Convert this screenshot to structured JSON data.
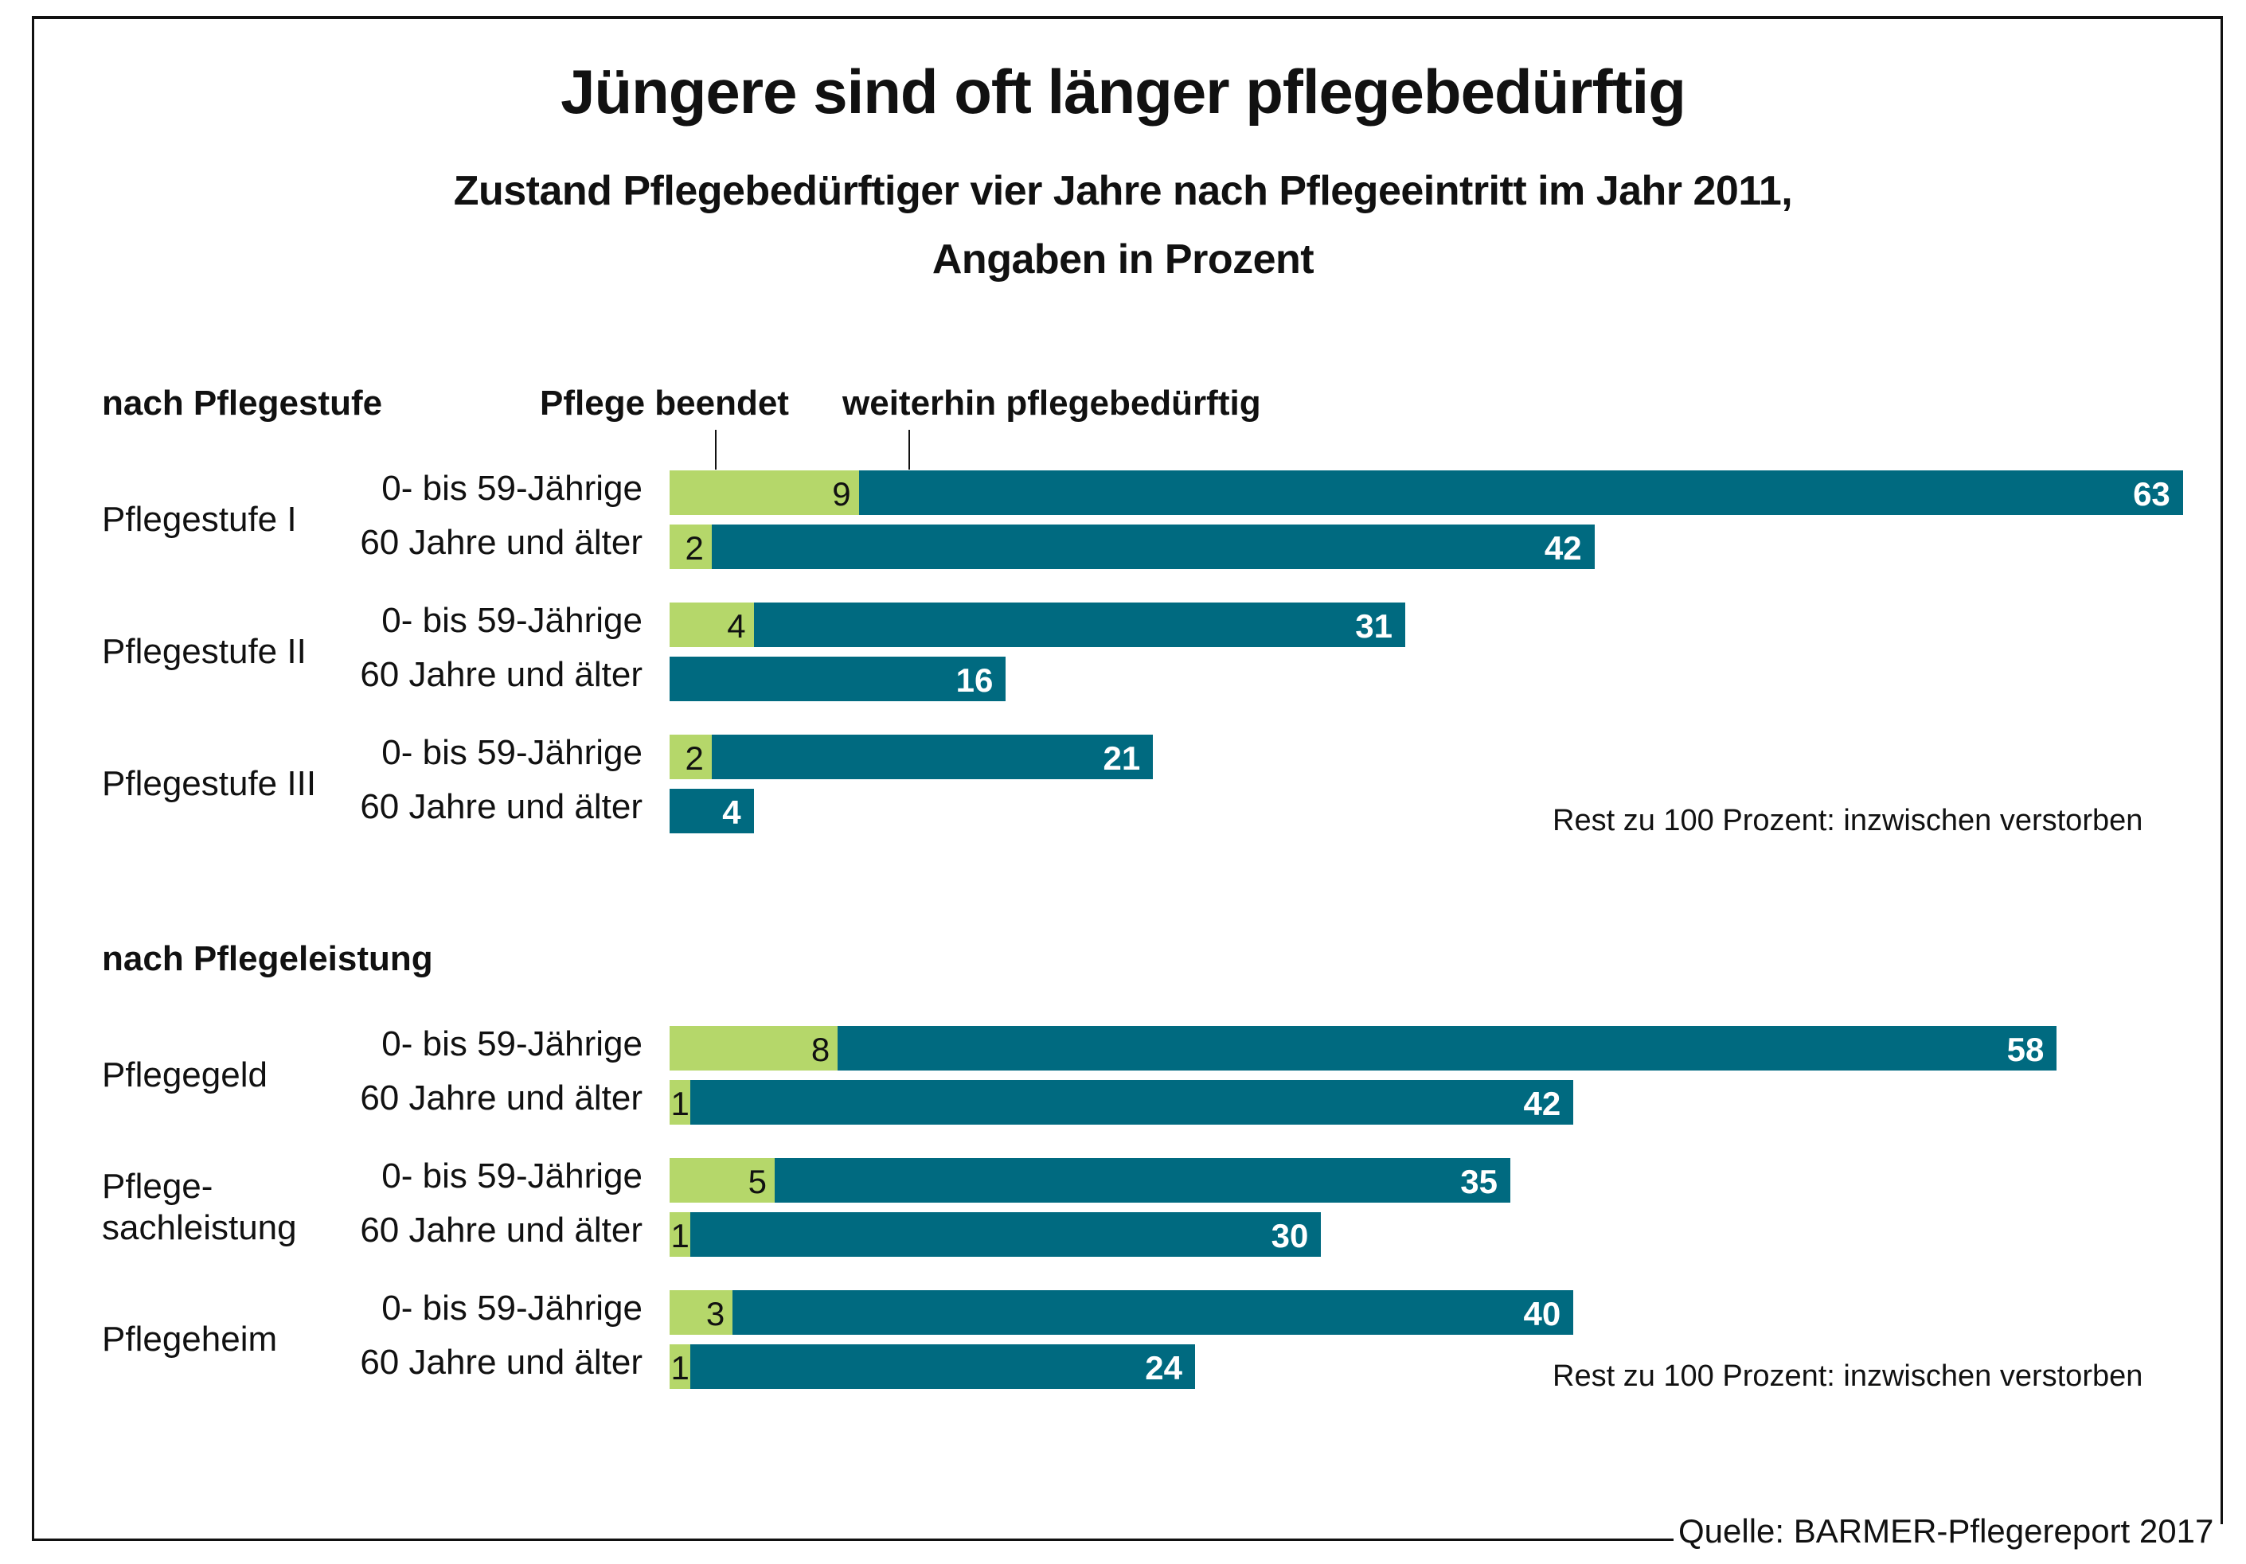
{
  "title": "Jüngere sind oft länger pflegebedürftig",
  "subtitle_line1": "Zustand Pflegebedürftiger vier Jahre nach Pflegeeintritt im Jahr 2011,",
  "subtitle_line2": "Angaben in Prozent",
  "legend": {
    "green_label": "Pflege beendet",
    "teal_label": "weiterhin pflegebedürftig"
  },
  "note": "Rest zu 100 Prozent: inzwischen verstorben",
  "source": "Quelle: BARMER-Pflegereport 2017",
  "colors": {
    "green": "#b5d76a",
    "teal": "#006a80"
  },
  "chart_data": {
    "type": "bar",
    "orientation": "horizontal",
    "stacked": true,
    "title": "Jüngere sind oft länger pflegebedürftig",
    "subtitle": "Zustand Pflegebedürftiger vier Jahre nach Pflegeeintritt im Jahr 2011, Angaben in Prozent",
    "xlabel": "",
    "ylabel": "",
    "unit": "%",
    "legend_position": "top",
    "series_names": [
      "Pflege beendet",
      "weiterhin pflegebedürftig"
    ],
    "sections": [
      {
        "heading": "nach Pflegestufe",
        "groups": [
          {
            "label": "Pflegestufe I",
            "rows": [
              {
                "label": "0- bis 59-Jährige",
                "beendet": 9,
                "weiterhin": 63
              },
              {
                "label": "60 Jahre und älter",
                "beendet": 2,
                "weiterhin": 42
              }
            ]
          },
          {
            "label": "Pflegestufe II",
            "rows": [
              {
                "label": "0- bis 59-Jährige",
                "beendet": 4,
                "weiterhin": 31
              },
              {
                "label": "60 Jahre und älter",
                "beendet": null,
                "weiterhin": 16
              }
            ]
          },
          {
            "label": "Pflegestufe III",
            "rows": [
              {
                "label": "0- bis 59-Jährige",
                "beendet": 2,
                "weiterhin": 21
              },
              {
                "label": "60 Jahre und älter",
                "beendet": null,
                "weiterhin": 4
              }
            ]
          }
        ]
      },
      {
        "heading": "nach Pflegeleistung",
        "groups": [
          {
            "label": "Pflegegeld",
            "rows": [
              {
                "label": "0- bis 59-Jährige",
                "beendet": 8,
                "weiterhin": 58
              },
              {
                "label": "60 Jahre und älter",
                "beendet": 1,
                "weiterhin": 42
              }
            ]
          },
          {
            "label": "Pflege-\nsachleistung",
            "rows": [
              {
                "label": "0- bis 59-Jährige",
                "beendet": 5,
                "weiterhin": 35
              },
              {
                "label": "60 Jahre und älter",
                "beendet": 1,
                "weiterhin": 30
              }
            ]
          },
          {
            "label": "Pflegeheim",
            "rows": [
              {
                "label": "0- bis 59-Jährige",
                "beendet": 3,
                "weiterhin": 40
              },
              {
                "label": "60 Jahre und älter",
                "beendet": 1,
                "weiterhin": 24
              }
            ]
          }
        ]
      }
    ]
  }
}
